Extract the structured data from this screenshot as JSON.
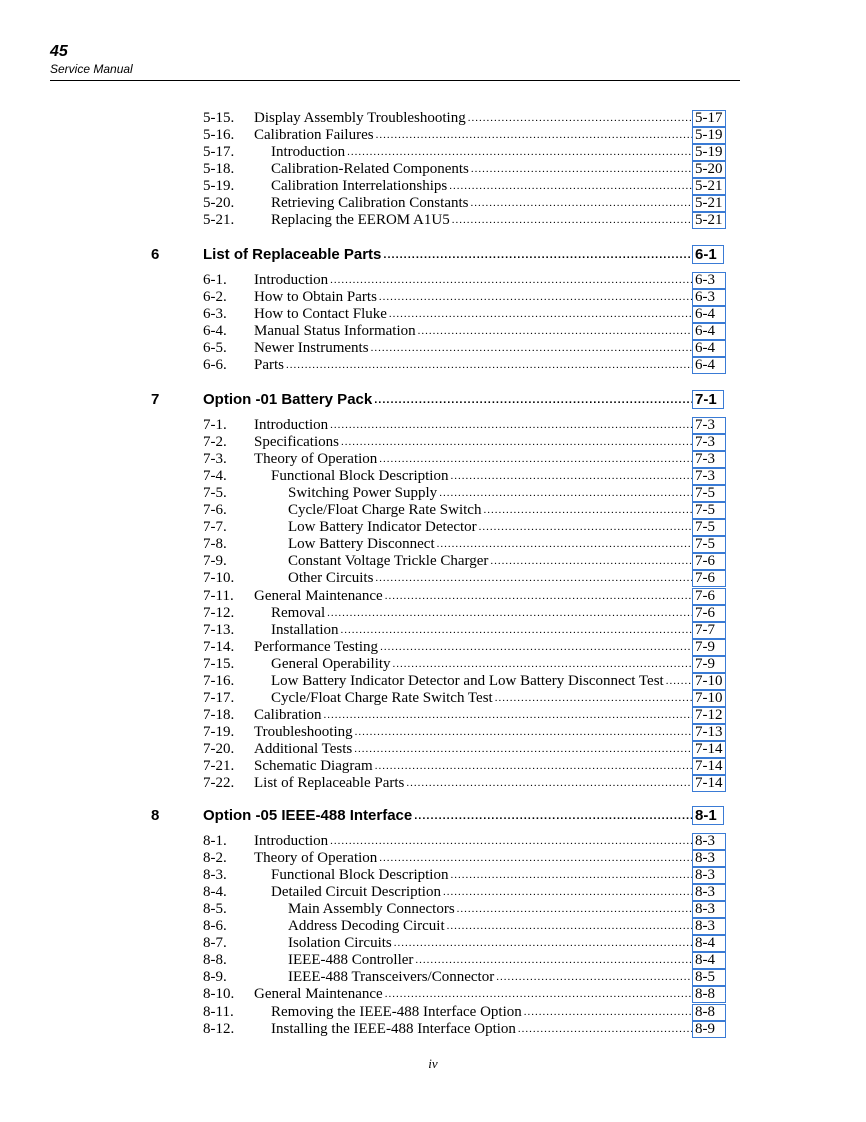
{
  "header": {
    "manual_number": "45",
    "manual_title": "Service Manual"
  },
  "footer": {
    "page_number": "iv"
  },
  "link_border_color": "#3a7bd5",
  "sections": [
    {
      "chapter": null,
      "entries": [
        {
          "num": "5-15.",
          "title": "Display Assembly Troubleshooting",
          "level": 0,
          "page": "5-17"
        },
        {
          "num": "5-16.",
          "title": "Calibration Failures",
          "level": 0,
          "page": "5-19"
        },
        {
          "num": "5-17.",
          "title": "Introduction",
          "level": 1,
          "page": "5-19"
        },
        {
          "num": "5-18.",
          "title": "Calibration-Related Components",
          "level": 1,
          "page": "5-20"
        },
        {
          "num": "5-19.",
          "title": "Calibration Interrelationships",
          "level": 1,
          "page": "5-21"
        },
        {
          "num": "5-20.",
          "title": "Retrieving Calibration Constants",
          "level": 1,
          "page": "5-21"
        },
        {
          "num": "5-21.",
          "title": "Replacing the EEROM A1U5",
          "level": 1,
          "page": "5-21"
        }
      ]
    },
    {
      "chapter": {
        "num": "6",
        "title": "List of Replaceable Parts",
        "page": "6-1"
      },
      "entries": [
        {
          "num": "6-1.",
          "title": "Introduction",
          "level": 0,
          "page": "6-3"
        },
        {
          "num": "6-2.",
          "title": "How to Obtain Parts",
          "level": 0,
          "page": "6-3"
        },
        {
          "num": "6-3.",
          "title": "How to Contact Fluke",
          "level": 0,
          "page": "6-4"
        },
        {
          "num": "6-4.",
          "title": "Manual Status Information",
          "level": 0,
          "page": "6-4"
        },
        {
          "num": "6-5.",
          "title": "Newer Instruments",
          "level": 0,
          "page": "6-4"
        },
        {
          "num": "6-6.",
          "title": "Parts",
          "level": 0,
          "page": "6-4"
        }
      ]
    },
    {
      "chapter": {
        "num": "7",
        "title": "Option -01 Battery Pack",
        "page": "7-1"
      },
      "entries": [
        {
          "num": "7-1.",
          "title": "Introduction",
          "level": 0,
          "page": "7-3"
        },
        {
          "num": "7-2.",
          "title": "Specifications",
          "level": 0,
          "page": "7-3"
        },
        {
          "num": "7-3.",
          "title": "Theory of Operation",
          "level": 0,
          "page": "7-3"
        },
        {
          "num": "7-4.",
          "title": "Functional Block Description",
          "level": 1,
          "page": "7-3"
        },
        {
          "num": "7-5.",
          "title": "Switching Power Supply",
          "level": 2,
          "page": "7-5"
        },
        {
          "num": "7-6.",
          "title": "Cycle/Float Charge Rate Switch",
          "level": 2,
          "page": "7-5"
        },
        {
          "num": "7-7.",
          "title": "Low Battery Indicator Detector",
          "level": 2,
          "page": "7-5"
        },
        {
          "num": "7-8.",
          "title": "Low Battery Disconnect",
          "level": 2,
          "page": "7-5"
        },
        {
          "num": "7-9.",
          "title": "Constant Voltage Trickle Charger",
          "level": 2,
          "page": "7-6"
        },
        {
          "num": "7-10.",
          "title": "Other Circuits",
          "level": 2,
          "page": "7-6"
        },
        {
          "num": "7-11.",
          "title": "General Maintenance",
          "level": 0,
          "page": "7-6"
        },
        {
          "num": "7-12.",
          "title": "Removal",
          "level": 1,
          "page": "7-6"
        },
        {
          "num": "7-13.",
          "title": "Installation",
          "level": 1,
          "page": "7-7"
        },
        {
          "num": "7-14.",
          "title": "Performance Testing",
          "level": 0,
          "page": "7-9"
        },
        {
          "num": "7-15.",
          "title": "General Operability",
          "level": 1,
          "page": "7-9"
        },
        {
          "num": "7-16.",
          "title": "Low Battery Indicator Detector and Low Battery Disconnect Test",
          "level": 1,
          "page": "7-10"
        },
        {
          "num": "7-17.",
          "title": "Cycle/Float Charge Rate Switch Test",
          "level": 1,
          "page": "7-10"
        },
        {
          "num": "7-18.",
          "title": "Calibration",
          "level": 0,
          "page": "7-12"
        },
        {
          "num": "7-19.",
          "title": "Troubleshooting",
          "level": 0,
          "page": "7-13"
        },
        {
          "num": "7-20.",
          "title": "Additional Tests",
          "level": 0,
          "page": "7-14"
        },
        {
          "num": "7-21.",
          "title": "Schematic Diagram",
          "level": 0,
          "page": "7-14"
        },
        {
          "num": "7-22.",
          "title": "List of Replaceable Parts",
          "level": 0,
          "page": "7-14"
        }
      ]
    },
    {
      "chapter": {
        "num": "8",
        "title": "Option -05 IEEE-488 Interface",
        "page": "8-1"
      },
      "entries": [
        {
          "num": "8-1.",
          "title": "Introduction",
          "level": 0,
          "page": "8-3"
        },
        {
          "num": "8-2.",
          "title": "Theory of Operation",
          "level": 0,
          "page": "8-3"
        },
        {
          "num": "8-3.",
          "title": "Functional Block Description",
          "level": 1,
          "page": "8-3"
        },
        {
          "num": "8-4.",
          "title": "Detailed Circuit Description",
          "level": 1,
          "page": "8-3"
        },
        {
          "num": "8-5.",
          "title": "Main Assembly Connectors",
          "level": 2,
          "page": "8-3"
        },
        {
          "num": "8-6.",
          "title": "Address Decoding Circuit",
          "level": 2,
          "page": "8-3"
        },
        {
          "num": "8-7.",
          "title": "Isolation Circuits",
          "level": 2,
          "page": "8-4"
        },
        {
          "num": "8-8.",
          "title": "IEEE-488 Controller",
          "level": 2,
          "page": "8-4"
        },
        {
          "num": "8-9.",
          "title": "IEEE-488 Transceivers/Connector",
          "level": 2,
          "page": "8-5"
        },
        {
          "num": "8-10.",
          "title": "General Maintenance",
          "level": 0,
          "page": "8-8"
        },
        {
          "num": "8-11.",
          "title": "Removing the IEEE-488 Interface Option",
          "level": 1,
          "page": "8-8"
        },
        {
          "num": "8-12.",
          "title": "Installing the IEEE-488 Interface Option",
          "level": 1,
          "page": "8-9"
        }
      ]
    }
  ]
}
